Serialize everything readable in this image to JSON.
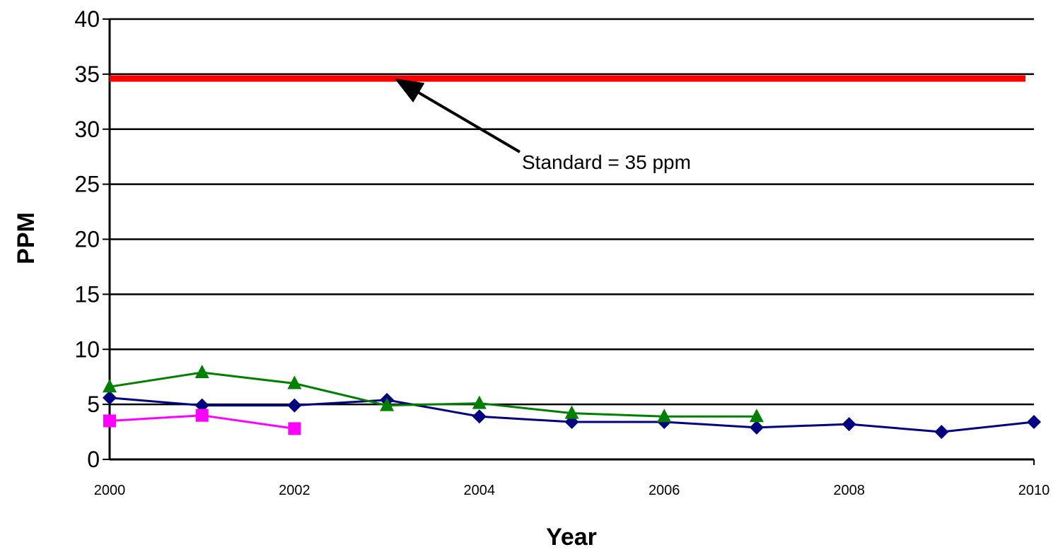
{
  "chart_data": {
    "type": "line",
    "title": "",
    "xlabel": "Year",
    "ylabel": "PPM",
    "xlim": [
      2000,
      2010
    ],
    "ylim": [
      0,
      40
    ],
    "x_ticks": [
      "2000",
      "2002",
      "2004",
      "2006",
      "2008",
      "2010"
    ],
    "x_tick_values": [
      2000,
      2002,
      2004,
      2006,
      2008,
      2010
    ],
    "y_ticks": [
      "0",
      "5",
      "10",
      "15",
      "20",
      "25",
      "30",
      "35",
      "40"
    ],
    "y_tick_values": [
      0,
      5,
      10,
      15,
      20,
      25,
      30,
      35,
      40
    ],
    "grid": true,
    "series": [
      {
        "color": "#000080",
        "marker": "diamond",
        "x": [
          2000,
          2001,
          2002,
          2003,
          2004,
          2005,
          2006,
          2007,
          2008,
          2009,
          2010
        ],
        "values": [
          5.6,
          4.9,
          4.9,
          5.4,
          3.9,
          3.4,
          3.4,
          2.9,
          3.2,
          2.5,
          3.4
        ]
      },
      {
        "color": "#ff00ff",
        "marker": "square",
        "x": [
          2000,
          2001,
          2002
        ],
        "values": [
          3.5,
          4.0,
          2.8
        ]
      },
      {
        "color": "#008000",
        "marker": "triangle",
        "x": [
          2000,
          2001,
          2002,
          2003,
          2004,
          2005,
          2006,
          2007
        ],
        "values": [
          6.6,
          7.9,
          6.9,
          4.9,
          5.1,
          4.2,
          3.9,
          3.9
        ]
      }
    ],
    "standard": {
      "value": 34.6,
      "x_range": [
        2000,
        2010
      ],
      "color": "#ff0000"
    },
    "annotation": {
      "text": "Standard = 35 ppm",
      "arrow_to": [
        2003.1,
        34.6
      ]
    }
  }
}
